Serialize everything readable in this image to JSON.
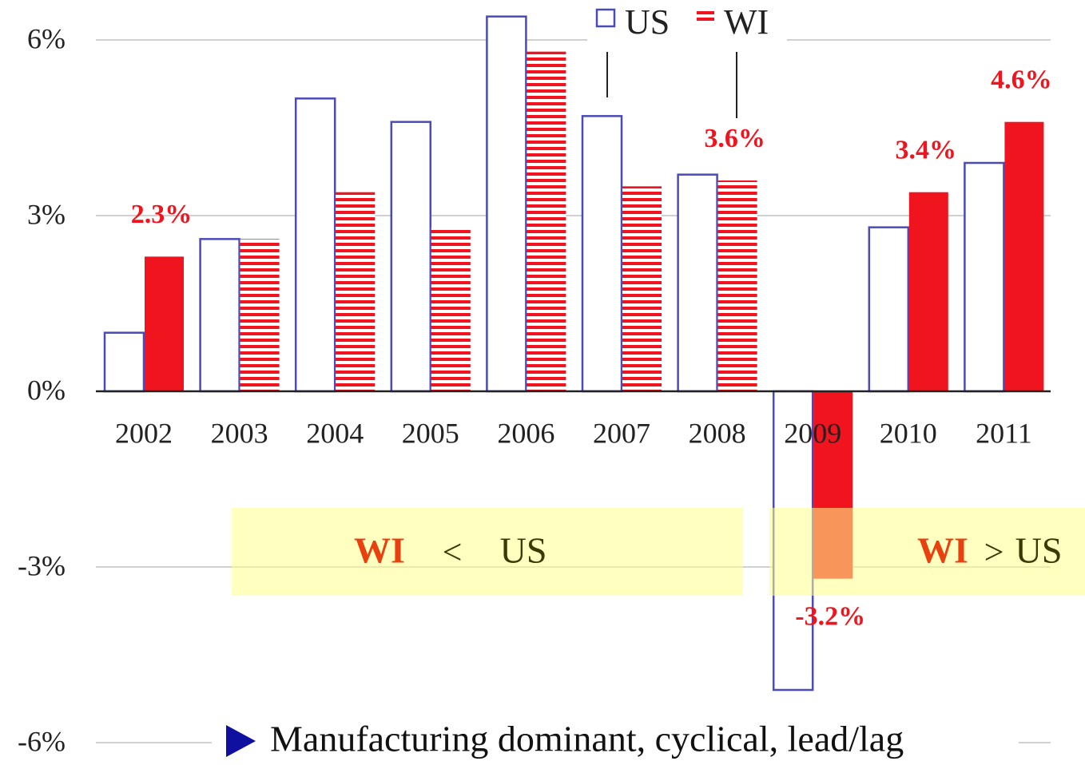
{
  "chart_data": {
    "type": "bar",
    "categories": [
      "2002",
      "2003",
      "2004",
      "2005",
      "2006",
      "2007",
      "2008",
      "2009",
      "2010",
      "2011"
    ],
    "series": [
      {
        "name": "US",
        "color": "#4a4ab8",
        "values": [
          1.0,
          2.6,
          5.0,
          4.6,
          6.4,
          4.7,
          3.7,
          -5.1,
          2.8,
          3.9
        ]
      },
      {
        "name": "WI",
        "color": "#f0141e",
        "values": [
          2.3,
          2.6,
          3.4,
          2.8,
          5.8,
          3.5,
          3.6,
          -3.2,
          3.4,
          4.6
        ],
        "value_labels": [
          "2.3%",
          null,
          null,
          null,
          null,
          null,
          "3.6%",
          "-3.2%",
          "3.4%",
          "4.6%"
        ],
        "fill_styles": [
          "solid",
          "striped",
          "striped",
          "striped",
          "striped",
          "striped",
          "striped",
          "solid",
          "solid",
          "solid"
        ]
      }
    ],
    "ylim": [
      -6,
      6
    ],
    "yticks": [
      {
        "value": -6,
        "label": "-6%"
      },
      {
        "value": -3,
        "label": "-3%"
      },
      {
        "value": 0,
        "label": "0%"
      },
      {
        "value": 3,
        "label": "3%"
      },
      {
        "value": 6,
        "label": "6%"
      }
    ],
    "grid": true,
    "legend": "top",
    "annotations": [
      {
        "left": "WI",
        "relation": "<",
        "right": "US"
      },
      {
        "left": "WI",
        "relation": ">",
        "right": "US"
      }
    ],
    "note": "Manufacturing dominant, cyclical, lead/lag"
  }
}
